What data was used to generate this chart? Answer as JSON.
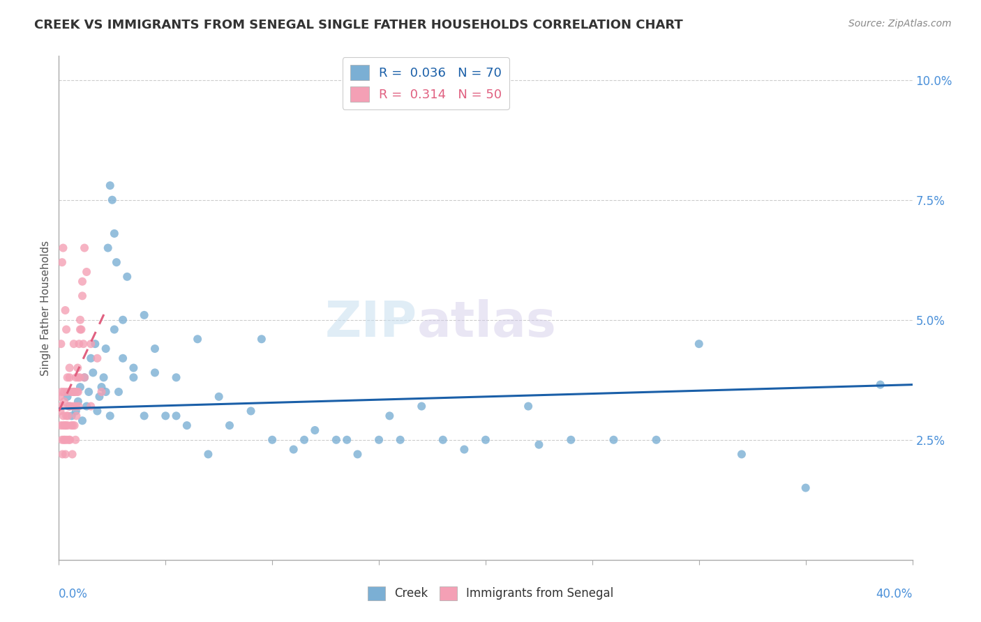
{
  "title": "CREEK VS IMMIGRANTS FROM SENEGAL SINGLE FATHER HOUSEHOLDS CORRELATION CHART",
  "source": "Source: ZipAtlas.com",
  "ylabel": "Single Father Households",
  "ytick_vals": [
    0.0,
    2.5,
    5.0,
    7.5,
    10.0
  ],
  "xlim": [
    0.0,
    40.0
  ],
  "ylim": [
    0.0,
    10.5
  ],
  "legend_creek_R": "0.036",
  "legend_creek_N": "70",
  "legend_senegal_R": "0.314",
  "legend_senegal_N": "50",
  "creek_color": "#7bafd4",
  "senegal_color": "#f4a0b5",
  "creek_line_color": "#1a5fa8",
  "senegal_line_color": "#e06080",
  "watermark_zip": "ZIP",
  "watermark_atlas": "atlas",
  "creek_line_x": [
    0.0,
    40.0
  ],
  "creek_line_y": [
    3.15,
    3.65
  ],
  "senegal_line_x": [
    0.0,
    2.2
  ],
  "senegal_line_y": [
    3.1,
    5.2
  ],
  "creek_x": [
    0.4,
    0.5,
    0.6,
    0.7,
    0.8,
    0.9,
    1.0,
    1.1,
    1.2,
    1.3,
    1.4,
    1.5,
    1.6,
    1.7,
    1.8,
    1.9,
    2.0,
    2.1,
    2.2,
    2.3,
    2.4,
    2.5,
    2.6,
    2.7,
    2.8,
    3.0,
    3.2,
    3.5,
    4.0,
    4.5,
    5.0,
    5.5,
    6.0,
    6.5,
    7.0,
    8.0,
    9.0,
    10.0,
    11.0,
    12.0,
    13.0,
    14.0,
    15.0,
    16.0,
    17.0,
    18.0,
    19.0,
    20.0,
    22.0,
    24.0,
    26.0,
    28.0,
    30.0,
    32.0,
    35.0,
    38.5,
    2.2,
    2.4,
    2.6,
    3.0,
    3.5,
    4.0,
    4.5,
    5.5,
    7.5,
    9.5,
    11.5,
    13.5,
    15.5,
    22.5
  ],
  "creek_y": [
    3.4,
    3.2,
    3.0,
    3.5,
    3.1,
    3.3,
    3.6,
    2.9,
    3.8,
    3.2,
    3.5,
    4.2,
    3.9,
    4.5,
    3.1,
    3.4,
    3.6,
    3.8,
    4.4,
    6.5,
    7.8,
    7.5,
    4.8,
    6.2,
    3.5,
    4.2,
    5.9,
    4.0,
    5.1,
    4.4,
    3.0,
    3.8,
    2.8,
    4.6,
    2.2,
    2.8,
    3.1,
    2.5,
    2.3,
    2.7,
    2.5,
    2.2,
    2.5,
    2.5,
    3.2,
    2.5,
    2.3,
    2.5,
    3.2,
    2.5,
    2.5,
    2.5,
    4.5,
    2.2,
    1.5,
    3.65,
    3.5,
    3.0,
    6.8,
    5.0,
    3.8,
    3.0,
    3.9,
    3.0,
    3.4,
    4.6,
    2.5,
    2.5,
    3.0,
    2.4
  ],
  "senegal_x": [
    0.05,
    0.07,
    0.09,
    0.11,
    0.13,
    0.15,
    0.17,
    0.19,
    0.21,
    0.23,
    0.25,
    0.27,
    0.29,
    0.31,
    0.33,
    0.35,
    0.37,
    0.39,
    0.41,
    0.43,
    0.45,
    0.47,
    0.5,
    0.52,
    0.55,
    0.58,
    0.6,
    0.63,
    0.65,
    0.68,
    0.7,
    0.73,
    0.75,
    0.78,
    0.8,
    0.82,
    0.85,
    0.88,
    0.9,
    0.93,
    0.95,
    0.98,
    1.0,
    1.05,
    1.1,
    1.15,
    1.2,
    1.3,
    1.5,
    1.8
  ],
  "senegal_y": [
    3.4,
    3.1,
    2.8,
    3.2,
    3.5,
    2.5,
    2.2,
    2.8,
    3.0,
    2.5,
    3.3,
    2.8,
    2.5,
    2.2,
    2.8,
    3.0,
    2.5,
    3.5,
    2.8,
    3.0,
    3.2,
    2.5,
    3.8,
    2.5,
    3.2,
    2.8,
    3.5,
    2.2,
    2.8,
    3.2,
    3.5,
    2.8,
    3.5,
    2.5,
    3.8,
    3.0,
    3.5,
    4.0,
    3.5,
    3.2,
    4.5,
    3.8,
    5.0,
    4.8,
    5.8,
    4.5,
    6.5,
    6.0,
    4.5,
    4.2
  ],
  "senegal_extra_x": [
    0.1,
    0.15,
    0.2,
    0.25,
    0.3,
    0.35,
    0.4,
    0.5,
    0.6,
    0.7,
    0.8,
    0.9,
    1.0,
    1.1,
    1.2,
    1.5,
    2.0
  ],
  "senegal_extra_y": [
    4.5,
    6.2,
    6.5,
    3.5,
    5.2,
    4.8,
    3.8,
    4.0,
    3.5,
    4.5,
    3.2,
    3.8,
    4.8,
    5.5,
    3.8,
    3.2,
    3.5
  ]
}
